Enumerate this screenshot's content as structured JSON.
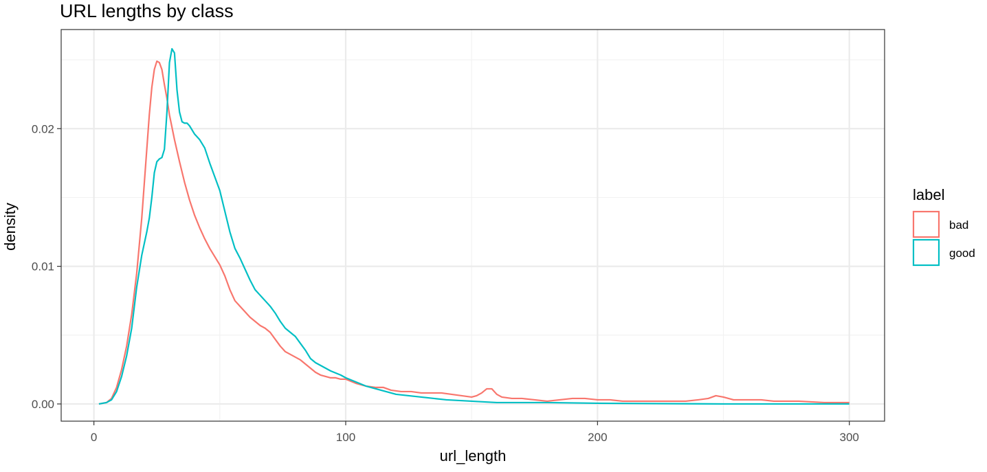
{
  "chart_data": {
    "type": "line",
    "title": "URL lengths by class",
    "xlabel": "url_length",
    "ylabel": "density",
    "xlim": [
      -13,
      314
    ],
    "ylim": [
      -0.00125,
      0.0272
    ],
    "x_ticks": [
      0,
      100,
      200,
      300
    ],
    "y_ticks": [
      0.0,
      0.01,
      0.02
    ],
    "x_tick_labels": [
      "0",
      "100",
      "200",
      "300"
    ],
    "y_tick_labels": [
      "0.00",
      "0.01",
      "0.02"
    ],
    "grid": true,
    "legend": {
      "title": "label",
      "position": "right"
    },
    "series": [
      {
        "name": "bad",
        "color": "#F8766D",
        "points": [
          [
            2,
            0.0
          ],
          [
            5,
            0.0001
          ],
          [
            7,
            0.0004
          ],
          [
            9,
            0.0012
          ],
          [
            11,
            0.0025
          ],
          [
            13,
            0.0042
          ],
          [
            15,
            0.0065
          ],
          [
            17,
            0.0095
          ],
          [
            19,
            0.0135
          ],
          [
            21,
            0.0185
          ],
          [
            22,
            0.021
          ],
          [
            23,
            0.023
          ],
          [
            24,
            0.0243
          ],
          [
            25,
            0.0249
          ],
          [
            26,
            0.0248
          ],
          [
            27,
            0.0243
          ],
          [
            28,
            0.0232
          ],
          [
            29,
            0.0222
          ],
          [
            30,
            0.021
          ],
          [
            32,
            0.0192
          ],
          [
            34,
            0.0176
          ],
          [
            36,
            0.0161
          ],
          [
            38,
            0.0148
          ],
          [
            40,
            0.0137
          ],
          [
            42,
            0.0128
          ],
          [
            44,
            0.012
          ],
          [
            46,
            0.0113
          ],
          [
            48,
            0.0107
          ],
          [
            50,
            0.0101
          ],
          [
            52,
            0.0093
          ],
          [
            54,
            0.0083
          ],
          [
            56,
            0.0075
          ],
          [
            58,
            0.0071
          ],
          [
            60,
            0.0067
          ],
          [
            62,
            0.0063
          ],
          [
            64,
            0.006
          ],
          [
            66,
            0.0057
          ],
          [
            68,
            0.0055
          ],
          [
            70,
            0.0052
          ],
          [
            72,
            0.0047
          ],
          [
            74,
            0.0042
          ],
          [
            76,
            0.0038
          ],
          [
            78,
            0.0036
          ],
          [
            80,
            0.0034
          ],
          [
            82,
            0.0032
          ],
          [
            84,
            0.0029
          ],
          [
            86,
            0.0026
          ],
          [
            88,
            0.0023
          ],
          [
            90,
            0.0021
          ],
          [
            92,
            0.002
          ],
          [
            94,
            0.0019
          ],
          [
            96,
            0.0019
          ],
          [
            98,
            0.0018
          ],
          [
            100,
            0.0018
          ],
          [
            104,
            0.0015
          ],
          [
            108,
            0.0013
          ],
          [
            112,
            0.0012
          ],
          [
            115,
            0.0012
          ],
          [
            118,
            0.001
          ],
          [
            122,
            0.0009
          ],
          [
            126,
            0.0009
          ],
          [
            130,
            0.0008
          ],
          [
            134,
            0.0008
          ],
          [
            138,
            0.0008
          ],
          [
            142,
            0.0007
          ],
          [
            146,
            0.0006
          ],
          [
            150,
            0.0005
          ],
          [
            152,
            0.0006
          ],
          [
            154,
            0.0008
          ],
          [
            156,
            0.0011
          ],
          [
            158,
            0.0011
          ],
          [
            160,
            0.0007
          ],
          [
            162,
            0.0005
          ],
          [
            166,
            0.0004
          ],
          [
            170,
            0.0004
          ],
          [
            175,
            0.0003
          ],
          [
            180,
            0.0002
          ],
          [
            185,
            0.0003
          ],
          [
            190,
            0.0004
          ],
          [
            195,
            0.0004
          ],
          [
            200,
            0.0003
          ],
          [
            205,
            0.0003
          ],
          [
            210,
            0.0002
          ],
          [
            220,
            0.0002
          ],
          [
            230,
            0.0002
          ],
          [
            235,
            0.0002
          ],
          [
            240,
            0.0003
          ],
          [
            244,
            0.0004
          ],
          [
            247,
            0.0006
          ],
          [
            250,
            0.0005
          ],
          [
            254,
            0.0003
          ],
          [
            260,
            0.0003
          ],
          [
            265,
            0.0003
          ],
          [
            270,
            0.0002
          ],
          [
            275,
            0.0002
          ],
          [
            280,
            0.0002
          ],
          [
            290,
            0.0001
          ],
          [
            300,
            0.0001
          ]
        ]
      },
      {
        "name": "good",
        "color": "#00BFC4",
        "points": [
          [
            2,
            0.0
          ],
          [
            5,
            0.0001
          ],
          [
            7,
            0.0003
          ],
          [
            9,
            0.0009
          ],
          [
            11,
            0.002
          ],
          [
            13,
            0.0035
          ],
          [
            15,
            0.0055
          ],
          [
            17,
            0.0085
          ],
          [
            19,
            0.0108
          ],
          [
            21,
            0.0125
          ],
          [
            22,
            0.0135
          ],
          [
            23,
            0.015
          ],
          [
            24,
            0.0168
          ],
          [
            25,
            0.0176
          ],
          [
            26,
            0.0178
          ],
          [
            27,
            0.0179
          ],
          [
            28,
            0.0185
          ],
          [
            29,
            0.0212
          ],
          [
            30,
            0.0248
          ],
          [
            31,
            0.0258
          ],
          [
            32,
            0.0255
          ],
          [
            33,
            0.0228
          ],
          [
            34,
            0.0212
          ],
          [
            35,
            0.0205
          ],
          [
            36,
            0.0204
          ],
          [
            37,
            0.0204
          ],
          [
            38,
            0.0202
          ],
          [
            40,
            0.0196
          ],
          [
            42,
            0.0192
          ],
          [
            44,
            0.0186
          ],
          [
            46,
            0.0175
          ],
          [
            48,
            0.0165
          ],
          [
            50,
            0.0155
          ],
          [
            52,
            0.014
          ],
          [
            54,
            0.0125
          ],
          [
            56,
            0.0113
          ],
          [
            58,
            0.0106
          ],
          [
            60,
            0.0098
          ],
          [
            62,
            0.009
          ],
          [
            64,
            0.0083
          ],
          [
            66,
            0.0079
          ],
          [
            68,
            0.0075
          ],
          [
            70,
            0.0071
          ],
          [
            72,
            0.0066
          ],
          [
            74,
            0.006
          ],
          [
            76,
            0.0055
          ],
          [
            78,
            0.0052
          ],
          [
            80,
            0.0049
          ],
          [
            82,
            0.0044
          ],
          [
            84,
            0.0039
          ],
          [
            86,
            0.0033
          ],
          [
            88,
            0.003
          ],
          [
            90,
            0.0028
          ],
          [
            94,
            0.0024
          ],
          [
            98,
            0.0021
          ],
          [
            100,
            0.0019
          ],
          [
            104,
            0.0016
          ],
          [
            108,
            0.0013
          ],
          [
            112,
            0.0011
          ],
          [
            116,
            0.0009
          ],
          [
            120,
            0.0007
          ],
          [
            125,
            0.0006
          ],
          [
            130,
            0.0005
          ],
          [
            135,
            0.0004
          ],
          [
            140,
            0.0003
          ],
          [
            150,
            0.0002
          ],
          [
            160,
            0.0001
          ],
          [
            170,
            0.0001
          ],
          [
            180,
            0.0001
          ],
          [
            200,
            5e-05
          ],
          [
            250,
            0.0
          ],
          [
            300,
            0.0
          ]
        ]
      }
    ]
  }
}
